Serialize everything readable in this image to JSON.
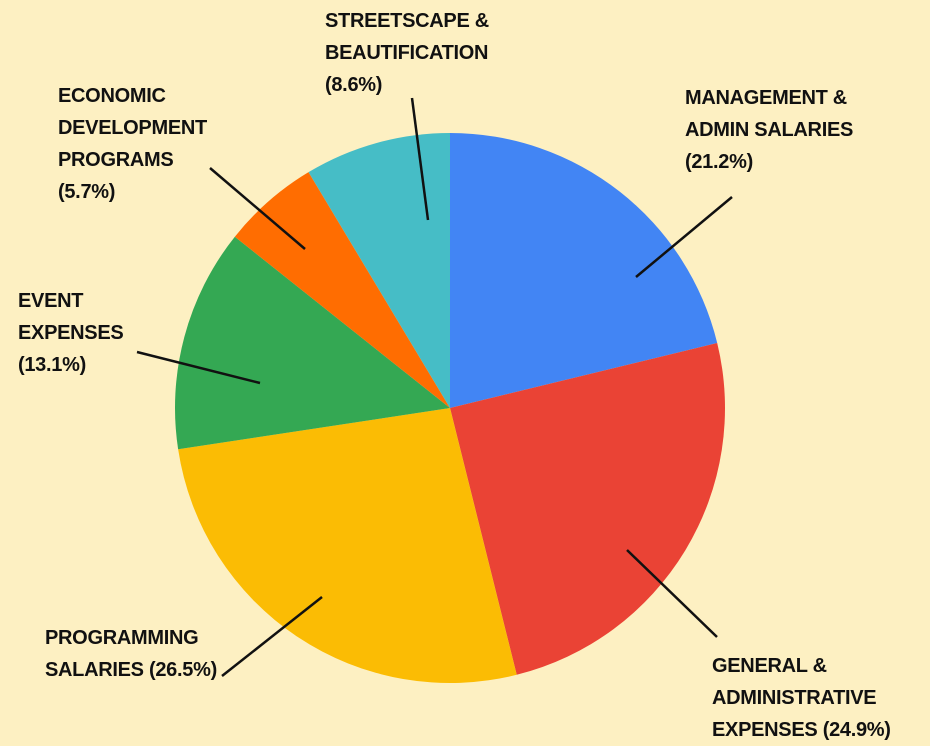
{
  "chart_data": {
    "type": "pie",
    "categories": [
      "MANAGEMENT & ADMIN SALARIES",
      "GENERAL & ADMINISTRATIVE EXPENSES",
      "PROGRAMMING SALARIES",
      "EVENT EXPENSES",
      "ECONOMIC DEVELOPMENT PROGRAMS",
      "STREETSCAPE & BEAUTIFICATION"
    ],
    "values": [
      21.2,
      24.9,
      26.5,
      13.1,
      5.7,
      8.6
    ],
    "value_labels": [
      "(21.2%)",
      "(24.9%)",
      "(26.5%)",
      "(13.1%)",
      "(5.7%)",
      "(8.6%)"
    ],
    "colors": [
      "#4285f4",
      "#ea4335",
      "#fbbc04",
      "#34a853",
      "#ff6d01",
      "#46bdc6"
    ]
  }
}
